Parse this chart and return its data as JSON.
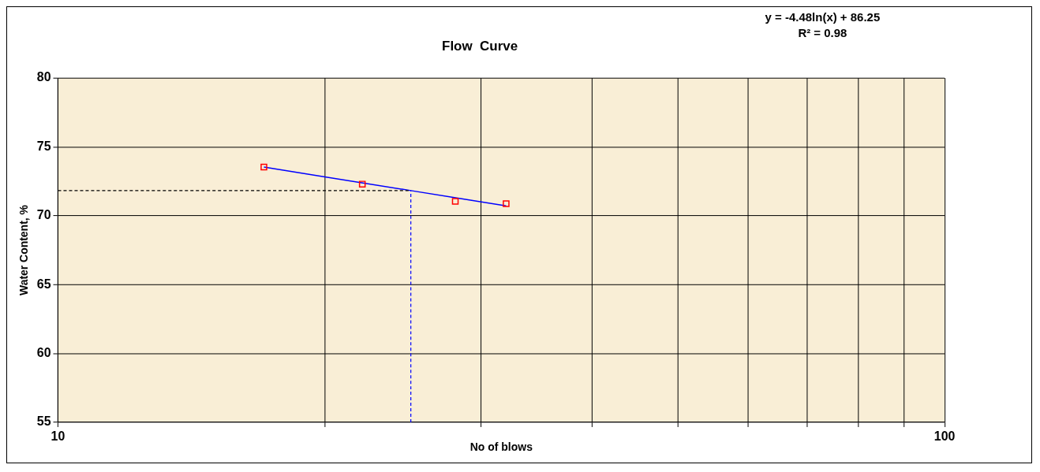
{
  "chart_data": {
    "type": "scatter",
    "title": "Flow  Curve",
    "xlabel": "No of blows",
    "ylabel": "Water Content, %",
    "annotations": [
      "y = -4.48ln(x) + 86.25",
      "R² = 0.98"
    ],
    "log": "x",
    "grid": true,
    "legend": false,
    "xlim": [
      10,
      100
    ],
    "xticks": [
      10,
      {
        "value": 20,
        "label": null
      },
      {
        "value": 30,
        "label": null
      },
      {
        "value": 40,
        "label": null
      },
      {
        "value": 50,
        "label": null
      },
      {
        "value": 60,
        "label": null
      },
      {
        "value": 70,
        "label": null
      },
      {
        "value": 80,
        "label": null
      },
      {
        "value": 90,
        "label": null
      },
      100
    ],
    "ylim": [
      55,
      80
    ],
    "yticks": [
      55,
      60,
      65,
      70,
      75,
      80
    ],
    "series": [
      {
        "color": "#ff0000",
        "marker": "square",
        "x": [
          17.07,
          22.04,
          28.06,
          32.02
        ],
        "values": [
          73.54,
          72.3,
          71.05,
          70.88
        ]
      },
      {
        "type": "line",
        "color": "#0000ff",
        "marker": "none",
        "line_style": "solid",
        "x": [
          17.07,
          20,
          25,
          28,
          32.02
        ],
        "values": [
          73.54,
          72.83,
          71.83,
          71.32,
          70.72
        ]
      }
    ],
    "ref_lines": [
      {
        "axis": "x",
        "value": 25,
        "color": "#0000ff",
        "line_style": "dashed"
      },
      {
        "axis": "y",
        "value": 71.83,
        "color": "#000000",
        "line_style": "dashed"
      }
    ]
  }
}
